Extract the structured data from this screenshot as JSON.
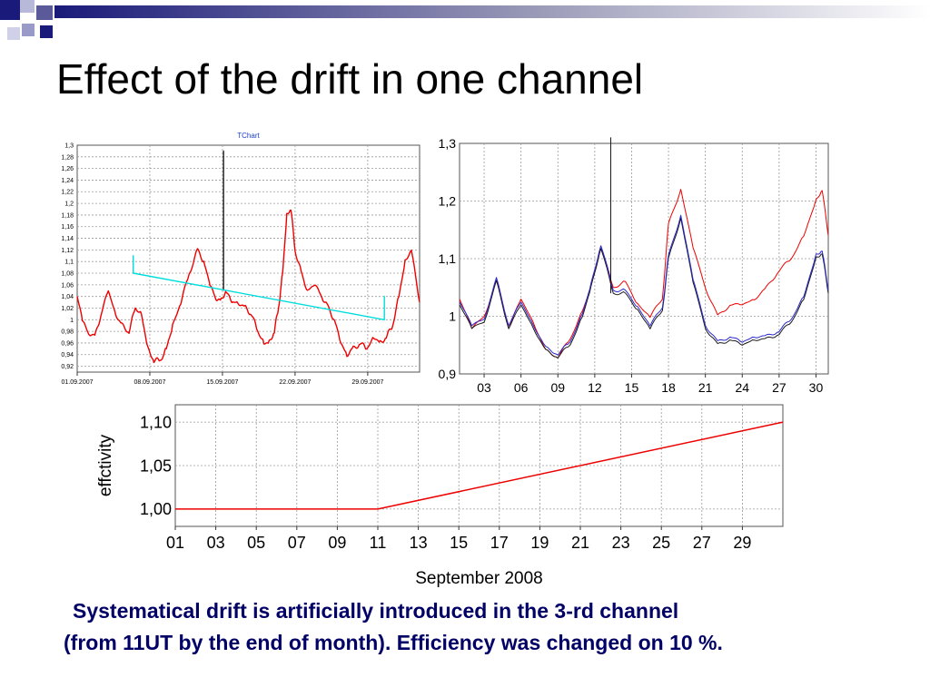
{
  "slide": {
    "title": "Effect of the drift in one channel",
    "caption_line1": "Systematical drift is artificially introduced in the 3-rd channel",
    "caption_line2": "(from 11UT by the end of month). Efficiency was changed on 10 %.",
    "title_color": "#000000",
    "caption_color": "#000066",
    "decor_color": "#1a1a7a"
  },
  "chart_data": [
    {
      "type": "line",
      "title": "TChart",
      "xlabel": "",
      "ylabel": "",
      "x_tick_labels": [
        "01.09.2007",
        "08.09.2007",
        "15.09.2007",
        "22.09.2007",
        "29.09.2007"
      ],
      "y_tick_labels": [
        "0,92",
        "0,94",
        "0,96",
        "0,98",
        "1",
        "1,02",
        "1,04",
        "1,06",
        "1,08",
        "1,1",
        "1,12",
        "1,14",
        "1,16",
        "1,18",
        "1,2",
        "1,22",
        "1,24",
        "1,26",
        "1,28",
        "1,3"
      ],
      "xlim": [
        1,
        34
      ],
      "ylim": [
        0.91,
        1.3
      ],
      "grid": true,
      "series": [
        {
          "color": "#ee0000",
          "x": [
            1,
            1.5,
            2,
            2.7,
            3.3,
            4,
            4.7,
            5.3,
            6,
            6.6,
            7.2,
            7.8,
            8.4,
            9,
            9.6,
            10.2,
            11,
            11.8,
            12.6,
            13.2,
            13.8,
            14.3,
            14.8,
            15.3,
            15.9,
            16.5,
            17.2,
            17.8,
            18.4,
            19,
            19.5,
            20,
            20.4,
            20.8,
            21.2,
            21.6,
            22,
            22.6,
            23.2,
            23.9,
            24.6,
            25.2,
            25.8,
            26.4,
            27,
            27.6,
            28.3,
            28.9,
            29.6,
            30.2,
            30.8,
            31.4,
            32,
            32.6,
            33.2,
            34
          ],
          "y": [
            1.04,
            1.0,
            0.98,
            0.97,
            1.01,
            1.05,
            1.01,
            0.99,
            0.98,
            1.02,
            1.01,
            0.95,
            0.93,
            0.93,
            0.95,
            0.99,
            1.03,
            1.08,
            1.12,
            1.1,
            1.06,
            1.04,
            1.03,
            1.05,
            1.03,
            1.03,
            1.02,
            1.01,
            0.98,
            0.96,
            0.96,
            0.98,
            1.02,
            1.08,
            1.18,
            1.19,
            1.12,
            1.08,
            1.05,
            1.06,
            1.04,
            1.02,
            1.0,
            0.96,
            0.94,
            0.95,
            0.96,
            0.95,
            0.97,
            0.96,
            0.97,
            0.99,
            1.04,
            1.1,
            1.12,
            1.03
          ]
        },
        {
          "color": "#1a1a1a",
          "x": [
            15.1,
            15.1,
            15.1
          ],
          "y": [
            1.05,
            1.29,
            1.05
          ]
        },
        {
          "color": "#00dddd",
          "x": [
            6.4,
            6.4,
            6.4,
            30.6,
            30.6,
            30.6
          ],
          "y": [
            1.08,
            1.11,
            1.08,
            1.0,
            1.04,
            1.0
          ]
        }
      ]
    },
    {
      "type": "line",
      "title": "",
      "xlabel": "",
      "ylabel": "",
      "x_tick_labels": [
        "03",
        "06",
        "09",
        "12",
        "15",
        "18",
        "21",
        "24",
        "27",
        "30"
      ],
      "y_tick_labels": [
        "0,9",
        "1",
        "1,1",
        "1,2",
        "1,3"
      ],
      "x_ticks": [
        3,
        6,
        9,
        12,
        15,
        18,
        21,
        24,
        27,
        30
      ],
      "xlim": [
        1,
        31
      ],
      "ylim": [
        0.9,
        1.3
      ],
      "grid": true,
      "series": [
        {
          "color": "#ee0000",
          "x": [
            1,
            2,
            3,
            4,
            5,
            6,
            7,
            8,
            9,
            10,
            11,
            11.7,
            12.5,
            13.5,
            14.5,
            15.5,
            16.5,
            17.5,
            18,
            19,
            20,
            21,
            22,
            23,
            24,
            25,
            26,
            27,
            28,
            29,
            30,
            30.5,
            31
          ],
          "y": [
            1.03,
            0.98,
            1.0,
            1.06,
            0.98,
            1.03,
            0.99,
            0.94,
            0.93,
            0.96,
            1.01,
            1.05,
            1.12,
            1.05,
            1.06,
            1.02,
            1.0,
            1.03,
            1.16,
            1.22,
            1.12,
            1.05,
            1.0,
            1.02,
            1.02,
            1.03,
            1.05,
            1.08,
            1.1,
            1.14,
            1.2,
            1.22,
            1.14
          ]
        },
        {
          "color": "#1a1a1a",
          "x": [
            1,
            2,
            3,
            4,
            5,
            6,
            7,
            8,
            9,
            10,
            11,
            11.7,
            12.5,
            13.5,
            14.5,
            15.5,
            16.5,
            17.5,
            18,
            19,
            20,
            21,
            22,
            23,
            24,
            25,
            26,
            27,
            28,
            29,
            30,
            30.5,
            31
          ],
          "y": [
            1.02,
            0.98,
            0.99,
            1.06,
            0.98,
            1.02,
            0.98,
            0.94,
            0.93,
            0.95,
            1.0,
            1.05,
            1.12,
            1.04,
            1.04,
            1.01,
            0.98,
            1.01,
            1.1,
            1.17,
            1.06,
            0.98,
            0.95,
            0.96,
            0.95,
            0.96,
            0.96,
            0.97,
            0.99,
            1.03,
            1.1,
            1.11,
            1.04
          ]
        },
        {
          "color": "#2a2ad0",
          "x": [
            1,
            2,
            3,
            4,
            5,
            6,
            7,
            8,
            9,
            10,
            11,
            11.7,
            12.5,
            13.5,
            14.5,
            15.5,
            16.5,
            17.5,
            18,
            19,
            20,
            21,
            22,
            23,
            24,
            25,
            26,
            27,
            28,
            29,
            30,
            30.5,
            31
          ],
          "y": [
            1.025,
            0.985,
            0.995,
            1.065,
            0.985,
            1.025,
            0.985,
            0.945,
            0.935,
            0.955,
            1.005,
            1.055,
            1.125,
            1.045,
            1.045,
            1.015,
            0.985,
            1.015,
            1.105,
            1.175,
            1.065,
            0.985,
            0.955,
            0.965,
            0.955,
            0.965,
            0.965,
            0.975,
            0.995,
            1.035,
            1.105,
            1.115,
            1.045
          ]
        },
        {
          "color": "#1a1a1a",
          "x": [
            13.3,
            13.3,
            13.3
          ],
          "y": [
            1.04,
            1.31,
            1.04
          ]
        }
      ]
    },
    {
      "type": "line",
      "title": "",
      "xlabel": "September 2008",
      "ylabel": "effctivity",
      "x_tick_labels": [
        "01",
        "03",
        "05",
        "07",
        "09",
        "11",
        "13",
        "15",
        "17",
        "19",
        "21",
        "23",
        "25",
        "27",
        "29"
      ],
      "x_ticks": [
        1,
        3,
        5,
        7,
        9,
        11,
        13,
        15,
        17,
        19,
        21,
        23,
        25,
        27,
        29
      ],
      "y_tick_labels": [
        "1,00",
        "1,05",
        "1,10"
      ],
      "y_ticks": [
        1.0,
        1.05,
        1.1
      ],
      "xlim": [
        1,
        31
      ],
      "ylim": [
        0.98,
        1.12
      ],
      "grid": true,
      "series": [
        {
          "color": "#ee0000",
          "x": [
            1,
            11,
            31
          ],
          "y": [
            1.0,
            1.0,
            1.1
          ]
        }
      ]
    }
  ]
}
